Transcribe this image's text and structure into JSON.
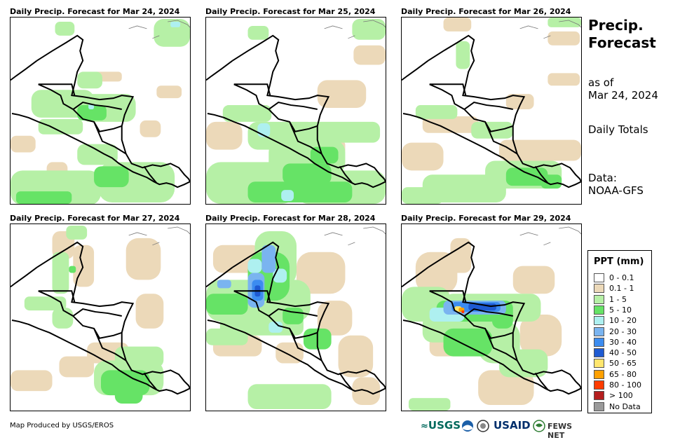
{
  "panels": [
    {
      "title": "Daily Precip. Forecast for Mar 24, 2024"
    },
    {
      "title": "Daily Precip. Forecast for Mar 25, 2024"
    },
    {
      "title": "Daily Precip. Forecast for Mar 26, 2024"
    },
    {
      "title": "Daily Precip. Forecast for Mar 27, 2024"
    },
    {
      "title": "Daily Precip. Forecast for Mar 28, 2024"
    },
    {
      "title": "Daily Precip. Forecast for Mar 29, 2024"
    }
  ],
  "side": {
    "title_line1": "Precip.",
    "title_line2": "Forecast",
    "asof_line1": "as of",
    "asof_line2": "Mar 24, 2024",
    "totals": "Daily Totals",
    "data_line1": "Data:",
    "data_line2": "NOAA-GFS"
  },
  "legend": {
    "title": "PPT (mm)",
    "items": [
      {
        "label": "0 - 0.1",
        "color": "#ffffff"
      },
      {
        "label": "0.1 - 1",
        "color": "#ecd9b9"
      },
      {
        "label": "1 - 5",
        "color": "#b6f0a6"
      },
      {
        "label": "5 - 10",
        "color": "#66e366"
      },
      {
        "label": "10 - 20",
        "color": "#aef0f0"
      },
      {
        "label": "20 - 30",
        "color": "#7ab4f0"
      },
      {
        "label": "30 - 40",
        "color": "#3c8cf0"
      },
      {
        "label": "40 - 50",
        "color": "#1e5ad2"
      },
      {
        "label": "50 - 65",
        "color": "#ffe66e"
      },
      {
        "label": "65 - 80",
        "color": "#ffa000"
      },
      {
        "label": "80 - 100",
        "color": "#ff3c00"
      },
      {
        "label": "> 100",
        "color": "#b41e1e"
      },
      {
        "label": "No Data",
        "color": "#9a9a9a"
      }
    ]
  },
  "credit": "Map Produced by USGS/EROS",
  "logos": {
    "usgs": "USGS",
    "usaid": "USAID",
    "fews": "FEWS NET"
  }
}
